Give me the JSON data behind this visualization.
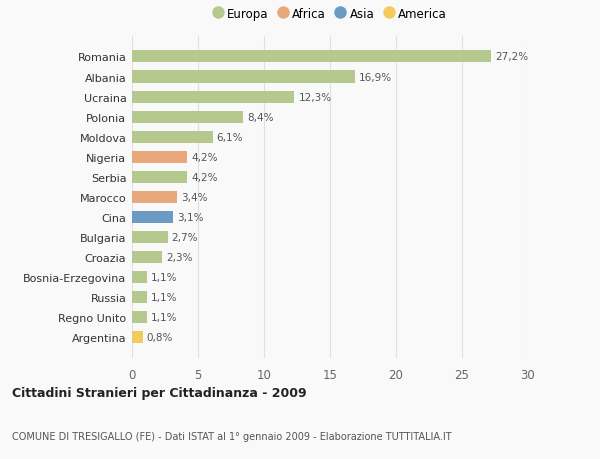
{
  "countries": [
    "Romania",
    "Albania",
    "Ucraina",
    "Polonia",
    "Moldova",
    "Nigeria",
    "Serbia",
    "Marocco",
    "Cina",
    "Bulgaria",
    "Croazia",
    "Bosnia-Erzegovina",
    "Russia",
    "Regno Unito",
    "Argentina"
  ],
  "values": [
    27.2,
    16.9,
    12.3,
    8.4,
    6.1,
    4.2,
    4.2,
    3.4,
    3.1,
    2.7,
    2.3,
    1.1,
    1.1,
    1.1,
    0.8
  ],
  "labels": [
    "27,2%",
    "16,9%",
    "12,3%",
    "8,4%",
    "6,1%",
    "4,2%",
    "4,2%",
    "3,4%",
    "3,1%",
    "2,7%",
    "2,3%",
    "1,1%",
    "1,1%",
    "1,1%",
    "0,8%"
  ],
  "continents": [
    "Europa",
    "Europa",
    "Europa",
    "Europa",
    "Europa",
    "Africa",
    "Europa",
    "Africa",
    "Asia",
    "Europa",
    "Europa",
    "Europa",
    "Europa",
    "Europa",
    "America"
  ],
  "colors": {
    "Europa": "#b5c98e",
    "Africa": "#e8a87c",
    "Asia": "#6b9bc3",
    "America": "#f2ca5e"
  },
  "xlim": [
    0,
    30
  ],
  "xticks": [
    0,
    5,
    10,
    15,
    20,
    25,
    30
  ],
  "title": "Cittadini Stranieri per Cittadinanza - 2009",
  "subtitle": "COMUNE DI TRESIGALLO (FE) - Dati ISTAT al 1° gennaio 2009 - Elaborazione TUTTITALIA.IT",
  "background_color": "#f9f9f9",
  "grid_color": "#e0e0e0",
  "legend_order": [
    "Europa",
    "Africa",
    "Asia",
    "America"
  ]
}
